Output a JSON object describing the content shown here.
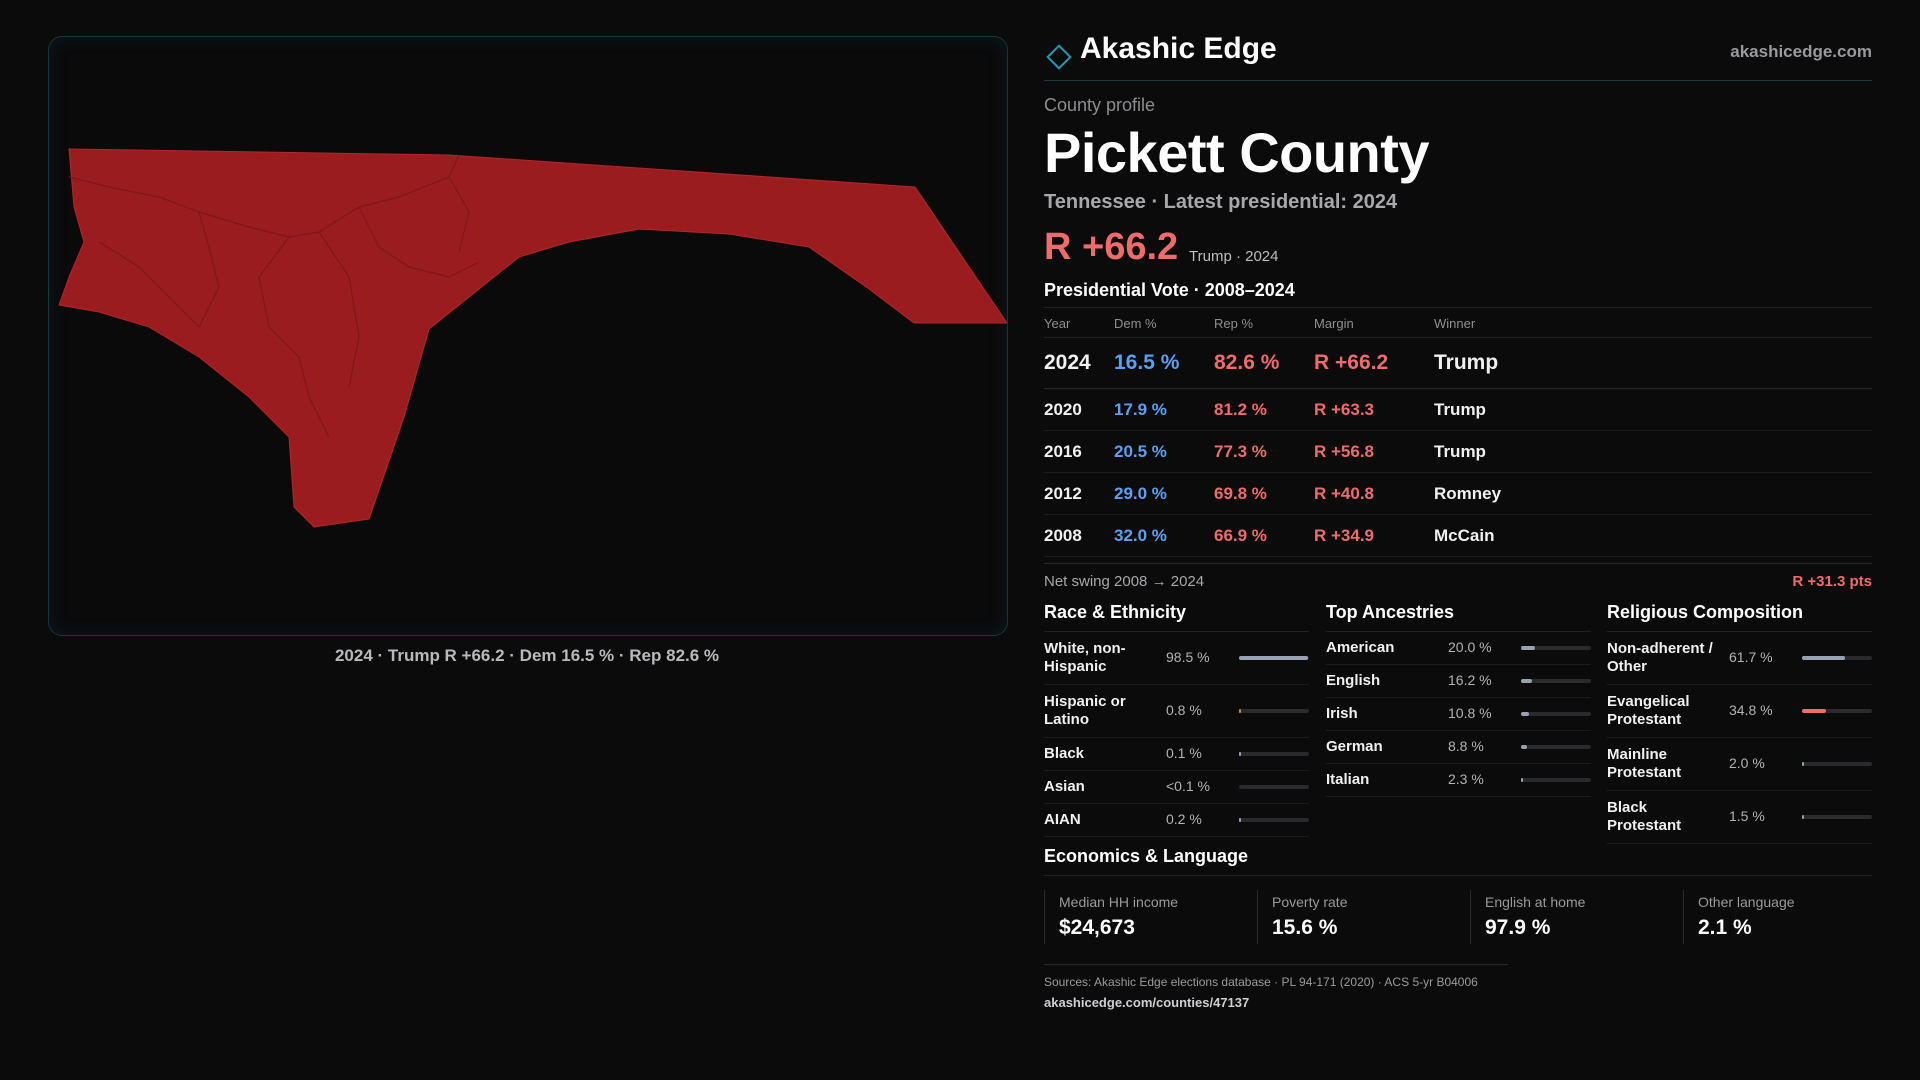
{
  "colors": {
    "rep": "#f06b6b",
    "dem": "#5aa0f2",
    "map_fill": "#9b1c1f",
    "accent": "#1e9bb0"
  },
  "header": {
    "brand": "Akashic Edge",
    "site": "akashicedge.com",
    "logo_icon": "diamond-icon"
  },
  "profile": {
    "kicker": "County profile",
    "title": "Pickett County",
    "subtitle": "Tennessee · Latest presidential: 2024",
    "headline_margin": "R +66.2",
    "headline_meta": "Trump · 2024"
  },
  "map": {
    "caption": "2024 · Trump R +66.2 · Dem 16.5 % · Rep 82.6 %"
  },
  "presidential": {
    "title": "Presidential Vote · 2008–2024",
    "columns": [
      "Year",
      "Dem %",
      "Rep %",
      "Margin",
      "Winner"
    ],
    "rows": [
      {
        "year": "2024",
        "dem": "16.5 %",
        "rep": "82.6 %",
        "margin": "R +66.2",
        "winner": "Trump"
      },
      {
        "year": "2020",
        "dem": "17.9 %",
        "rep": "81.2 %",
        "margin": "R +63.3",
        "winner": "Trump"
      },
      {
        "year": "2016",
        "dem": "20.5 %",
        "rep": "77.3 %",
        "margin": "R +56.8",
        "winner": "Trump"
      },
      {
        "year": "2012",
        "dem": "29.0 %",
        "rep": "69.8 %",
        "margin": "R +40.8",
        "winner": "Romney"
      },
      {
        "year": "2008",
        "dem": "32.0 %",
        "rep": "66.9 %",
        "margin": "R +34.9",
        "winner": "McCain"
      }
    ],
    "swing_label": "Net swing 2008 → 2024",
    "swing_value": "R +31.3 pts"
  },
  "race": {
    "title": "Race & Ethnicity",
    "items": [
      {
        "name": "White, non-Hispanic",
        "pct": "98.5 %",
        "share": 0.985
      },
      {
        "name": "Hispanic or Latino",
        "pct": "0.8 %",
        "share": 0.008
      },
      {
        "name": "Black",
        "pct": "0.1 %",
        "share": 0.001
      },
      {
        "name": "Asian",
        "pct": "<0.1 %",
        "share": 0.0
      },
      {
        "name": "AIAN",
        "pct": "0.2 %",
        "share": 0.002
      }
    ]
  },
  "ancestry": {
    "title": "Top Ancestries",
    "items": [
      {
        "name": "American",
        "pct": "20.0 %",
        "share": 0.2
      },
      {
        "name": "English",
        "pct": "16.2 %",
        "share": 0.162
      },
      {
        "name": "Irish",
        "pct": "10.8 %",
        "share": 0.108
      },
      {
        "name": "German",
        "pct": "8.8 %",
        "share": 0.088
      },
      {
        "name": "Italian",
        "pct": "2.3 %",
        "share": 0.023
      }
    ]
  },
  "religion": {
    "title": "Religious Composition",
    "items": [
      {
        "name": "Non-adherent / Other",
        "pct": "61.7 %",
        "share": 0.617
      },
      {
        "name": "Evangelical Protestant",
        "pct": "34.8 %",
        "share": 0.348
      },
      {
        "name": "Mainline Protestant",
        "pct": "2.0 %",
        "share": 0.02
      },
      {
        "name": "Black Protestant",
        "pct": "1.5 %",
        "share": 0.015
      }
    ]
  },
  "economics": {
    "title": "Economics & Language",
    "stats": [
      {
        "label": "Median HH income",
        "value": "$24,673"
      },
      {
        "label": "Poverty rate",
        "value": "15.6 %"
      },
      {
        "label": "English at home",
        "value": "97.9 %"
      },
      {
        "label": "Other language",
        "value": "2.1 %"
      }
    ]
  },
  "footer": {
    "sources": "Sources: Akashic Edge elections database · PL 94-171 (2020) · ACS 5-yr B04006",
    "link": "akashicedge.com/counties/47137"
  }
}
